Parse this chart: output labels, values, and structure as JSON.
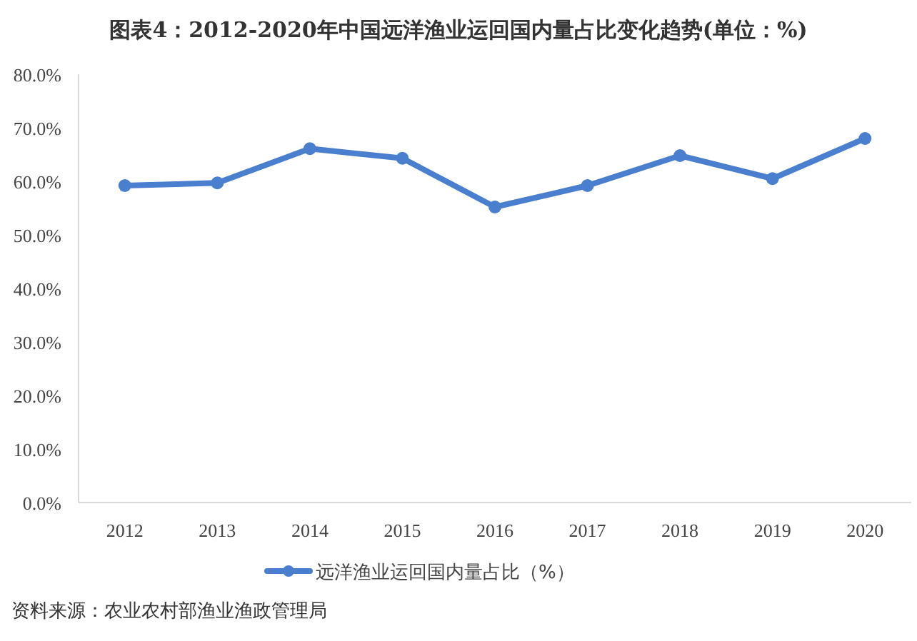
{
  "chart_data": {
    "type": "line",
    "title": "图表4：2012-2020年中国远洋渔业运回国内量占比变化趋势(单位：%)",
    "categories": [
      "2012",
      "2013",
      "2014",
      "2015",
      "2016",
      "2017",
      "2018",
      "2019",
      "2020"
    ],
    "series": [
      {
        "name": "远洋渔业运回国内量占比（%）",
        "color": "#4a7fcf",
        "values": [
          59.2,
          59.7,
          66.1,
          64.3,
          55.2,
          59.2,
          64.8,
          60.5,
          68.0
        ]
      }
    ],
    "ylim": [
      0,
      80
    ],
    "yticks": [
      {
        "value": 0,
        "label": "0.0%"
      },
      {
        "value": 10,
        "label": "10.0%"
      },
      {
        "value": 20,
        "label": "20.0%"
      },
      {
        "value": 30,
        "label": "30.0%"
      },
      {
        "value": 40,
        "label": "40.0%"
      },
      {
        "value": 50,
        "label": "50.0%"
      },
      {
        "value": 60,
        "label": "60.0%"
      },
      {
        "value": 70,
        "label": "70.0%"
      },
      {
        "value": 80,
        "label": "80.0%"
      }
    ],
    "grid": false,
    "legend": "bottom",
    "marker": "circle",
    "line_style": "solid",
    "annotations": [
      "资料来源：农业农村部渔业渔政管理局"
    ]
  }
}
